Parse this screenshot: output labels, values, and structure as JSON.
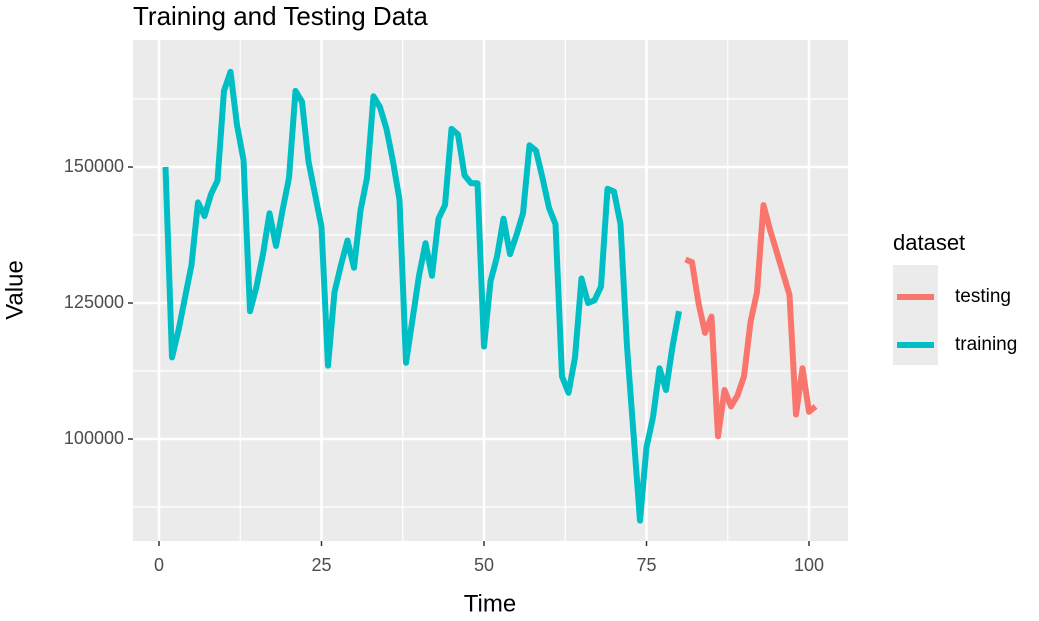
{
  "chart_data": {
    "type": "line",
    "title": "Training and Testing Data",
    "x_label": "Time",
    "y_label": "Value",
    "legend_title": "dataset",
    "legend_position": "right",
    "grid": true,
    "xlim": [
      -4,
      106
    ],
    "xticks": [
      0,
      25,
      50,
      75,
      100
    ],
    "x_minor_grid": [
      12.5,
      37.5,
      62.5,
      87.5
    ],
    "ylim": [
      81250,
      173350
    ],
    "yticks": [
      100000,
      125000,
      150000
    ],
    "y_minor_grid": [
      87500,
      112500,
      137500,
      162500
    ],
    "series": [
      {
        "name": "testing",
        "color": "#F8766D",
        "x": [
          81,
          82,
          83,
          84,
          85,
          86,
          87,
          88,
          89,
          90,
          91,
          92,
          93,
          94,
          95,
          96,
          97,
          98,
          99,
          100,
          101
        ],
        "values": [
          133000,
          132500,
          125000,
          119500,
          122500,
          100500,
          109000,
          106000,
          108000,
          111500,
          121500,
          127000,
          143000,
          138500,
          134500,
          130500,
          126500,
          104500,
          113000,
          105000,
          106000
        ]
      },
      {
        "name": "training",
        "color": "#00BFC4",
        "x": [
          1,
          2,
          3,
          4,
          5,
          6,
          7,
          8,
          9,
          10,
          11,
          12,
          13,
          14,
          15,
          16,
          17,
          18,
          19,
          20,
          21,
          22,
          23,
          24,
          25,
          26,
          27,
          28,
          29,
          30,
          31,
          32,
          33,
          34,
          35,
          36,
          37,
          38,
          39,
          40,
          41,
          42,
          43,
          44,
          45,
          46,
          47,
          48,
          49,
          50,
          51,
          52,
          53,
          54,
          55,
          56,
          57,
          58,
          59,
          60,
          61,
          62,
          63,
          64,
          65,
          66,
          67,
          68,
          69,
          70,
          71,
          72,
          73,
          74,
          75,
          76,
          77,
          78,
          79,
          80
        ],
        "values": [
          150000,
          115000,
          120000,
          126000,
          132000,
          143500,
          141000,
          145000,
          147500,
          164000,
          167500,
          157700,
          151300,
          123500,
          128000,
          134000,
          141500,
          135500,
          142000,
          148000,
          164000,
          162000,
          151000,
          145000,
          139000,
          113500,
          127000,
          132000,
          136500,
          131500,
          142000,
          148000,
          163000,
          161000,
          157000,
          151000,
          144000,
          114000,
          122000,
          130000,
          136000,
          130000,
          140500,
          143000,
          157000,
          156000,
          148500,
          147000,
          147000,
          117000,
          129000,
          133500,
          140500,
          134000,
          137500,
          141500,
          154000,
          153000,
          148000,
          142500,
          139500,
          111500,
          108500,
          115000,
          129500,
          125000,
          125500,
          128000,
          146000,
          145500,
          139500,
          117000,
          101000,
          85000,
          98500,
          104000,
          113000,
          109000,
          117000,
          123500
        ]
      }
    ]
  }
}
